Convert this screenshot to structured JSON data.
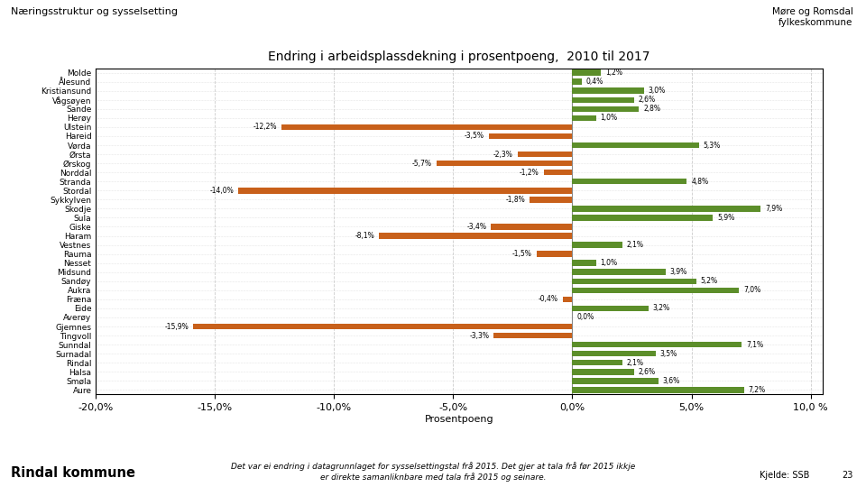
{
  "chart_data": {
    "type": "bar",
    "orientation": "horizontal",
    "title": "Endring i arbeidsplassdekning i prosentpoeng,  2010 til 2017",
    "x_label": "Prosentpoeng",
    "categories": [
      "Molde",
      "Ålesund",
      "Kristiansund",
      "Vågsøyen",
      "Sande",
      "Herøy",
      "Ulstein",
      "Hareid",
      "Vørda",
      "Ørsta",
      "Ørskog",
      "Norddal",
      "Stranda",
      "Stordal",
      "Sykkylven",
      "Skodje",
      "Sula",
      "Giske",
      "Haram",
      "Vestnes",
      "Rauma",
      "Nesset",
      "Midsund",
      "Sandøy",
      "Aukra",
      "Fræna",
      "Eide",
      "Averøy",
      "Gjemnes",
      "Tingvoll",
      "Sunndal",
      "Surnadal",
      "Rindal",
      "Halsa",
      "Smøla",
      "Aure"
    ],
    "values": [
      1.2,
      0.4,
      3.0,
      2.6,
      2.8,
      1.0,
      -12.2,
      -3.5,
      5.3,
      -2.3,
      -5.7,
      -1.2,
      4.8,
      -14.0,
      -1.8,
      7.9,
      5.9,
      -3.4,
      -8.1,
      2.1,
      -1.5,
      1.0,
      3.9,
      5.2,
      7.0,
      -0.4,
      3.2,
      0.0,
      -15.9,
      -3.3,
      7.1,
      3.5,
      2.1,
      2.6,
      3.6,
      7.2
    ],
    "value_labels": [
      "1,2%",
      "0,4%",
      "3,0%",
      "2,6%",
      "2,8%",
      "1,0%",
      "-12,2%",
      "-3,5%",
      "5,3%",
      "-2,3%",
      "-5,7%",
      "-1,2%",
      "4,8%",
      "-14,0%",
      "-1,8%",
      "7,9%",
      "5,9%",
      "-3,4%",
      "-8,1%",
      "2,1%",
      "-1,5%",
      "1,0%",
      "3,9%",
      "5,2%",
      "7,0%",
      "-0,4%",
      "3,2%",
      "0,0%",
      "-15,9%",
      "-3,3%",
      "7,1%",
      "3,5%",
      "2,1%",
      "2,6%",
      "3,6%",
      "7,2%"
    ],
    "data_labels": true,
    "colors": [
      "#5c8e2a",
      "#5c8e2a",
      "#5c8e2a",
      "#5c8e2a",
      "#5c8e2a",
      "#5c8e2a",
      "#c8601a",
      "#c8601a",
      "#5c8e2a",
      "#c8601a",
      "#c8601a",
      "#c8601a",
      "#5c8e2a",
      "#c8601a",
      "#c8601a",
      "#5c8e2a",
      "#5c8e2a",
      "#c8601a",
      "#c8601a",
      "#5c8e2a",
      "#c8601a",
      "#5c8e2a",
      "#5c8e2a",
      "#5c8e2a",
      "#5c8e2a",
      "#c8601a",
      "#5c8e2a",
      "#5c8e2a",
      "#c8601a",
      "#c8601a",
      "#5c8e2a",
      "#5c8e2a",
      "#5c8e2a",
      "#5c8e2a",
      "#5c8e2a",
      "#5c8e2a"
    ],
    "xlim": [
      -20,
      10.5
    ],
    "xticks": [
      {
        "value": -20,
        "label": "-20,0%"
      },
      {
        "value": -15,
        "label": "-15,0%"
      },
      {
        "value": -10,
        "label": "-10,0%"
      },
      {
        "value": -5,
        "label": "-5,0%"
      },
      {
        "value": 0,
        "label": "0,0%"
      },
      {
        "value": 5,
        "label": "5,0%"
      },
      {
        "value": 10,
        "label": "10,0 %"
      }
    ],
    "grid": true,
    "annotations": [
      "Næringsstruktur og sysselsetting",
      "Det var ei endring i datagrunnlaget for sysselsettingstal frå 2015. Det gjer at tala frå før 2015 ikkje\ner direkte samanliknbare med tala frå 2015 og seinare.",
      "Kjelde: SSB",
      "23",
      "Rindal kommune",
      "Møre og Romsdal\nfylkeskommune"
    ]
  }
}
